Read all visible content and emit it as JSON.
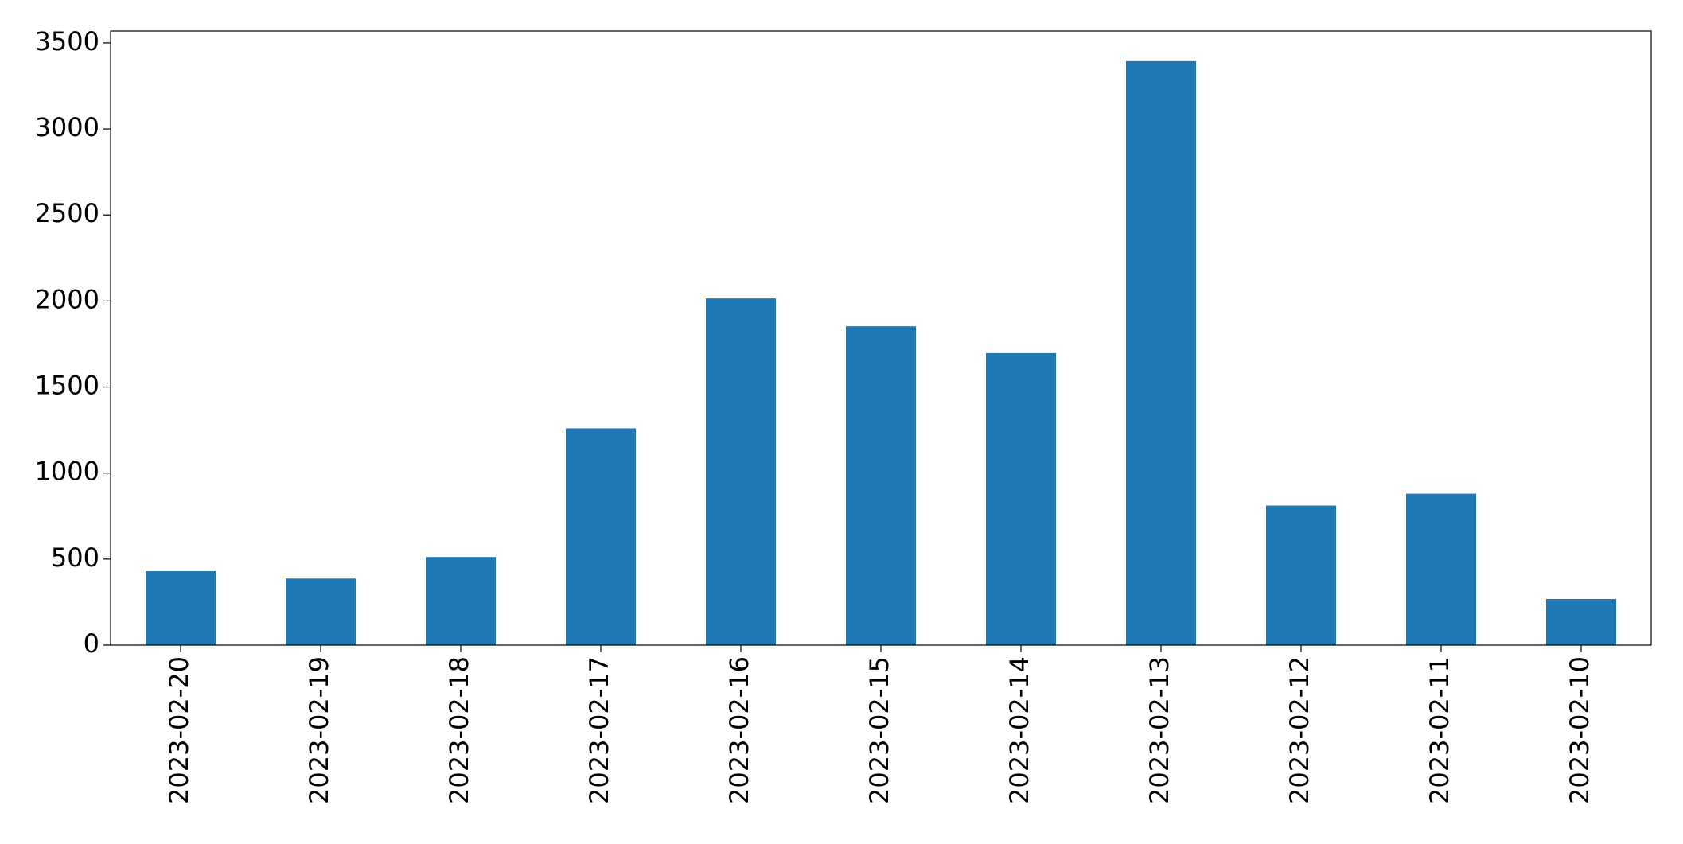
{
  "chart_data": {
    "type": "bar",
    "categories": [
      "2023-02-20",
      "2023-02-19",
      "2023-02-18",
      "2023-02-17",
      "2023-02-16",
      "2023-02-15",
      "2023-02-14",
      "2023-02-13",
      "2023-02-12",
      "2023-02-11",
      "2023-02-10"
    ],
    "values": [
      430,
      387,
      512,
      1260,
      2015,
      1853,
      1697,
      3394,
      811,
      880,
      268
    ],
    "color": "#1f77b4",
    "ylim": [
      0,
      3569
    ],
    "yticks": [
      0,
      500,
      1000,
      1500,
      2000,
      2500,
      3000,
      3500
    ],
    "grid": false
  }
}
